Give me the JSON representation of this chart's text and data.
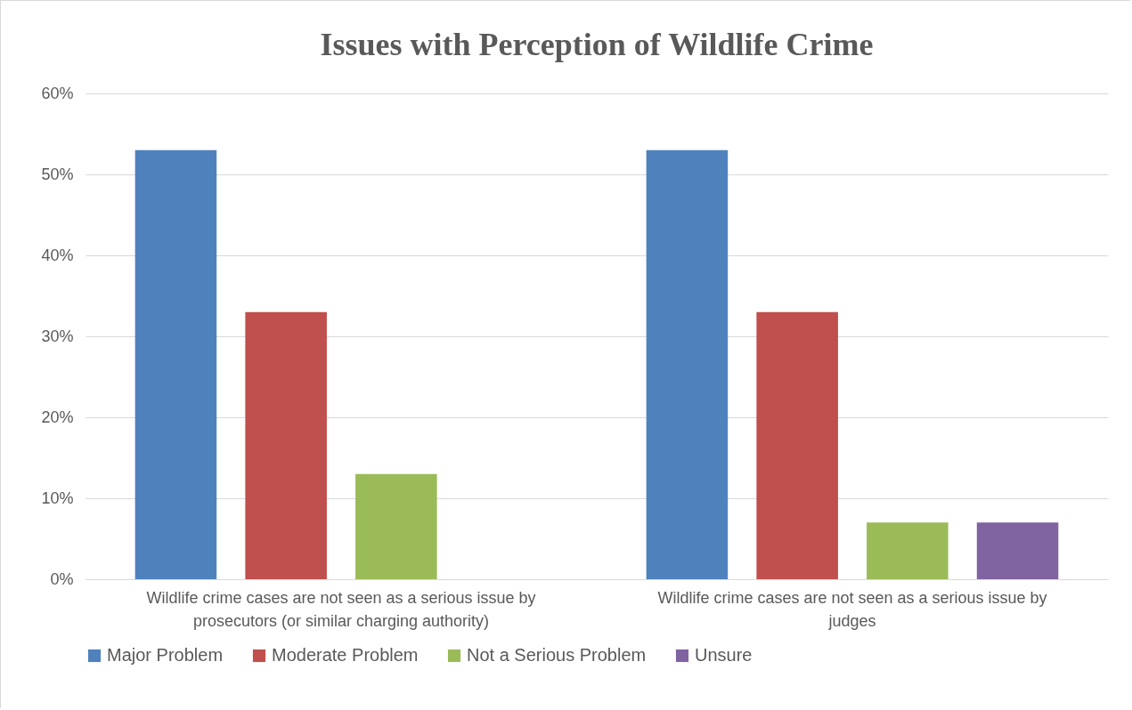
{
  "chart_data": {
    "type": "bar",
    "title": "Issues with Perception of Wildlife Crime",
    "categories": [
      "Wildlife crime cases are not seen as a serious issue by prosecutors (or similar charging authority)",
      "Wildlife crime cases are not seen as a serious issue by judges"
    ],
    "series": [
      {
        "name": "Major Problem",
        "color": "#4f81bd",
        "values": [
          53,
          53
        ]
      },
      {
        "name": "Moderate Problem",
        "color": "#c0504d",
        "values": [
          33,
          33
        ]
      },
      {
        "name": "Not a Serious Problem",
        "color": "#9bbb59",
        "values": [
          13,
          7
        ]
      },
      {
        "name": "Unsure",
        "color": "#8064a2",
        "values": [
          0,
          7
        ]
      }
    ],
    "ylim": [
      0,
      60
    ],
    "yticks": [
      {
        "value": 0,
        "label": "0%"
      },
      {
        "value": 10,
        "label": "10%"
      },
      {
        "value": 20,
        "label": "20%"
      },
      {
        "value": 30,
        "label": "30%"
      },
      {
        "value": 40,
        "label": "40%"
      },
      {
        "value": 50,
        "label": "50%"
      },
      {
        "value": 60,
        "label": "60%"
      }
    ],
    "grid": "y",
    "legend": "bottom"
  }
}
